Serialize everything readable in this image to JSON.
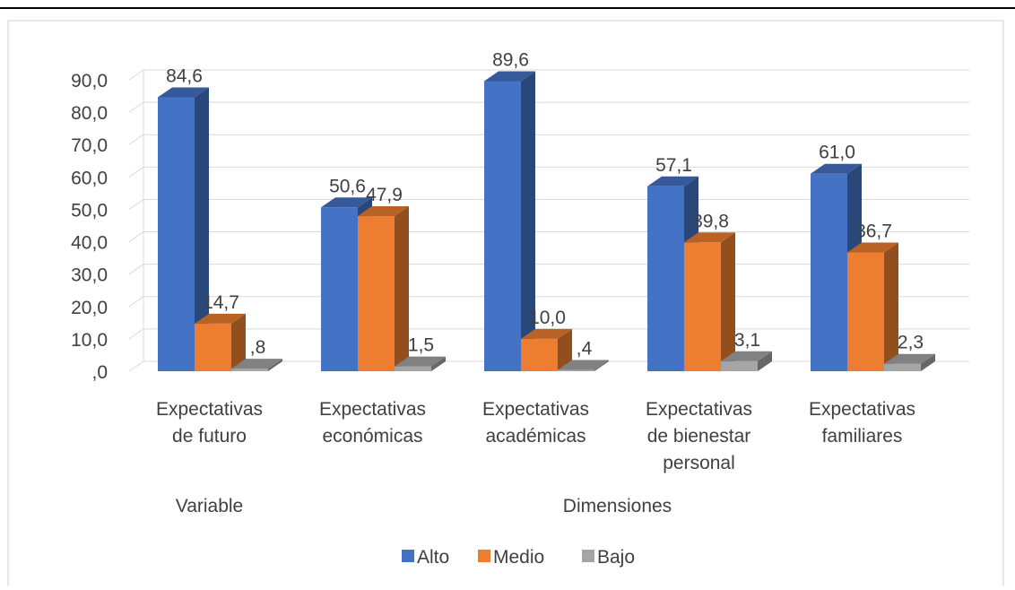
{
  "chart_data": {
    "type": "bar",
    "categories": [
      [
        "Expectativas",
        "de futuro"
      ],
      [
        "Expectativas",
        "económicas"
      ],
      [
        "Expectativas",
        "académicas"
      ],
      [
        "Expectativas",
        "de bienestar",
        "personal"
      ],
      [
        "Expectativas",
        "familiares"
      ]
    ],
    "groups": [
      {
        "label": "Variable",
        "categories": [
          0
        ]
      },
      {
        "label": "Dimensiones",
        "categories": [
          1,
          2,
          3,
          4
        ]
      }
    ],
    "series": [
      {
        "name": "Alto",
        "color": "#4472C4",
        "values": [
          84.6,
          50.6,
          89.6,
          57.1,
          61.0
        ],
        "labels": [
          "84,6",
          "50,6",
          "89,6",
          "57,1",
          "61,0"
        ]
      },
      {
        "name": "Medio",
        "color": "#ED7D31",
        "values": [
          14.7,
          47.9,
          10.0,
          39.8,
          36.7
        ],
        "labels": [
          "14,7",
          "47,9",
          "10,0",
          "39,8",
          "36,7"
        ]
      },
      {
        "name": "Bajo",
        "color": "#A5A5A5",
        "values": [
          0.8,
          1.5,
          0.4,
          3.1,
          2.3
        ],
        "labels": [
          ",8",
          "1,5",
          ",4",
          "3,1",
          "2,3"
        ]
      }
    ],
    "ylim": [
      0,
      90
    ],
    "yticks": [
      ",0",
      "10,0",
      "20,0",
      "30,0",
      "40,0",
      "50,0",
      "60,0",
      "70,0",
      "80,0",
      "90,0"
    ],
    "grid": true,
    "legend_position": "bottom",
    "style_3d": true
  }
}
